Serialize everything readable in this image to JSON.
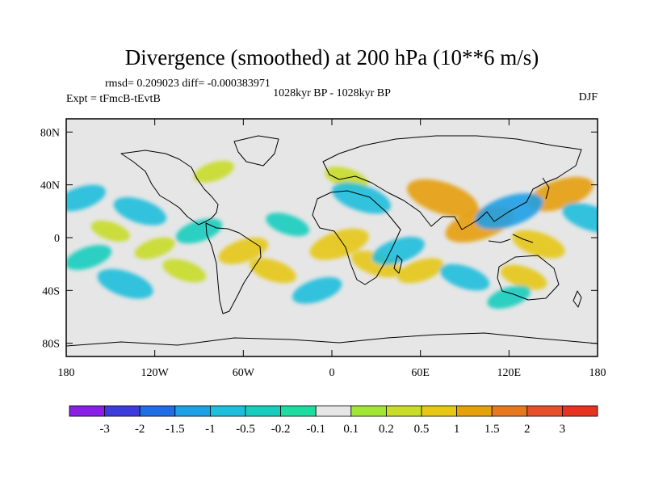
{
  "chart_data": {
    "type": "heatmap",
    "title": "Divergence (smoothed) at 200 hPa (10**6 m/s)",
    "stats_line": "rmsd= 0.209023 diff= -0.000383971",
    "left_label": "Expt = tFmcB-tEvtB",
    "center_label": "1028kyr BP - 1028kyr BP",
    "right_label": "DJF",
    "x_range": [
      -180,
      180
    ],
    "y_range": [
      -90,
      90
    ],
    "x_ticks": [
      {
        "value": -180,
        "label": "180"
      },
      {
        "value": -120,
        "label": "120W"
      },
      {
        "value": -60,
        "label": "60W"
      },
      {
        "value": 0,
        "label": "0"
      },
      {
        "value": 60,
        "label": "60E"
      },
      {
        "value": 120,
        "label": "120E"
      },
      {
        "value": 180,
        "label": "180"
      }
    ],
    "y_ticks": [
      {
        "value": 80,
        "label": "80N"
      },
      {
        "value": 40,
        "label": "40N"
      },
      {
        "value": 0,
        "label": "0"
      },
      {
        "value": -40,
        "label": "40S"
      },
      {
        "value": -80,
        "label": "80S"
      }
    ],
    "colorbar": {
      "colors": [
        "#8a1ee6",
        "#3c3cdc",
        "#1e6ee6",
        "#1ea0e6",
        "#1ebedc",
        "#19cdbe",
        "#1edca0",
        "#e6e6e6",
        "#a0e632",
        "#c8dc28",
        "#e6c814",
        "#e6a00a",
        "#e6781e",
        "#e65028",
        "#e6321e"
      ],
      "labels": [
        "-3",
        "-2",
        "-1.5",
        "-1",
        "-0.5",
        "-0.2",
        "-0.1",
        "0.1",
        "0.2",
        "0.5",
        "1",
        "1.5",
        "2",
        "3"
      ]
    },
    "background_color": "#e6e6e6",
    "anomalies": [
      {
        "lon": -150,
        "lat": 5,
        "value": 0.25
      },
      {
        "lon": -120,
        "lat": -8,
        "value": 0.3
      },
      {
        "lon": -100,
        "lat": -25,
        "value": 0.4
      },
      {
        "lon": -60,
        "lat": -10,
        "value": 0.6
      },
      {
        "lon": -40,
        "lat": -25,
        "value": 0.5
      },
      {
        "lon": 5,
        "lat": -5,
        "value": 0.9
      },
      {
        "lon": 30,
        "lat": -20,
        "value": 0.6
      },
      {
        "lon": 60,
        "lat": -25,
        "value": 0.5
      },
      {
        "lon": 75,
        "lat": 30,
        "value": 1.3
      },
      {
        "lon": 100,
        "lat": 10,
        "value": 1.2
      },
      {
        "lon": 140,
        "lat": -5,
        "value": 0.7
      },
      {
        "lon": 155,
        "lat": 33,
        "value": 1.1
      },
      {
        "lon": 130,
        "lat": -30,
        "value": 0.5
      },
      {
        "lon": -80,
        "lat": 50,
        "value": 0.3
      },
      {
        "lon": 10,
        "lat": 45,
        "value": 0.4
      },
      {
        "lon": -170,
        "lat": 30,
        "value": -0.6
      },
      {
        "lon": -130,
        "lat": 20,
        "value": -0.7
      },
      {
        "lon": -165,
        "lat": -15,
        "value": -0.5
      },
      {
        "lon": -140,
        "lat": -35,
        "value": -0.8
      },
      {
        "lon": -90,
        "lat": 5,
        "value": -0.5
      },
      {
        "lon": -30,
        "lat": 10,
        "value": -0.4
      },
      {
        "lon": -10,
        "lat": -40,
        "value": -0.6
      },
      {
        "lon": 20,
        "lat": 30,
        "value": -0.9
      },
      {
        "lon": 45,
        "lat": -10,
        "value": -0.7
      },
      {
        "lon": 90,
        "lat": -30,
        "value": -0.6
      },
      {
        "lon": 120,
        "lat": 20,
        "value": -1.2
      },
      {
        "lon": 175,
        "lat": 15,
        "value": -0.8
      },
      {
        "lon": 120,
        "lat": -45,
        "value": -0.4
      }
    ]
  }
}
